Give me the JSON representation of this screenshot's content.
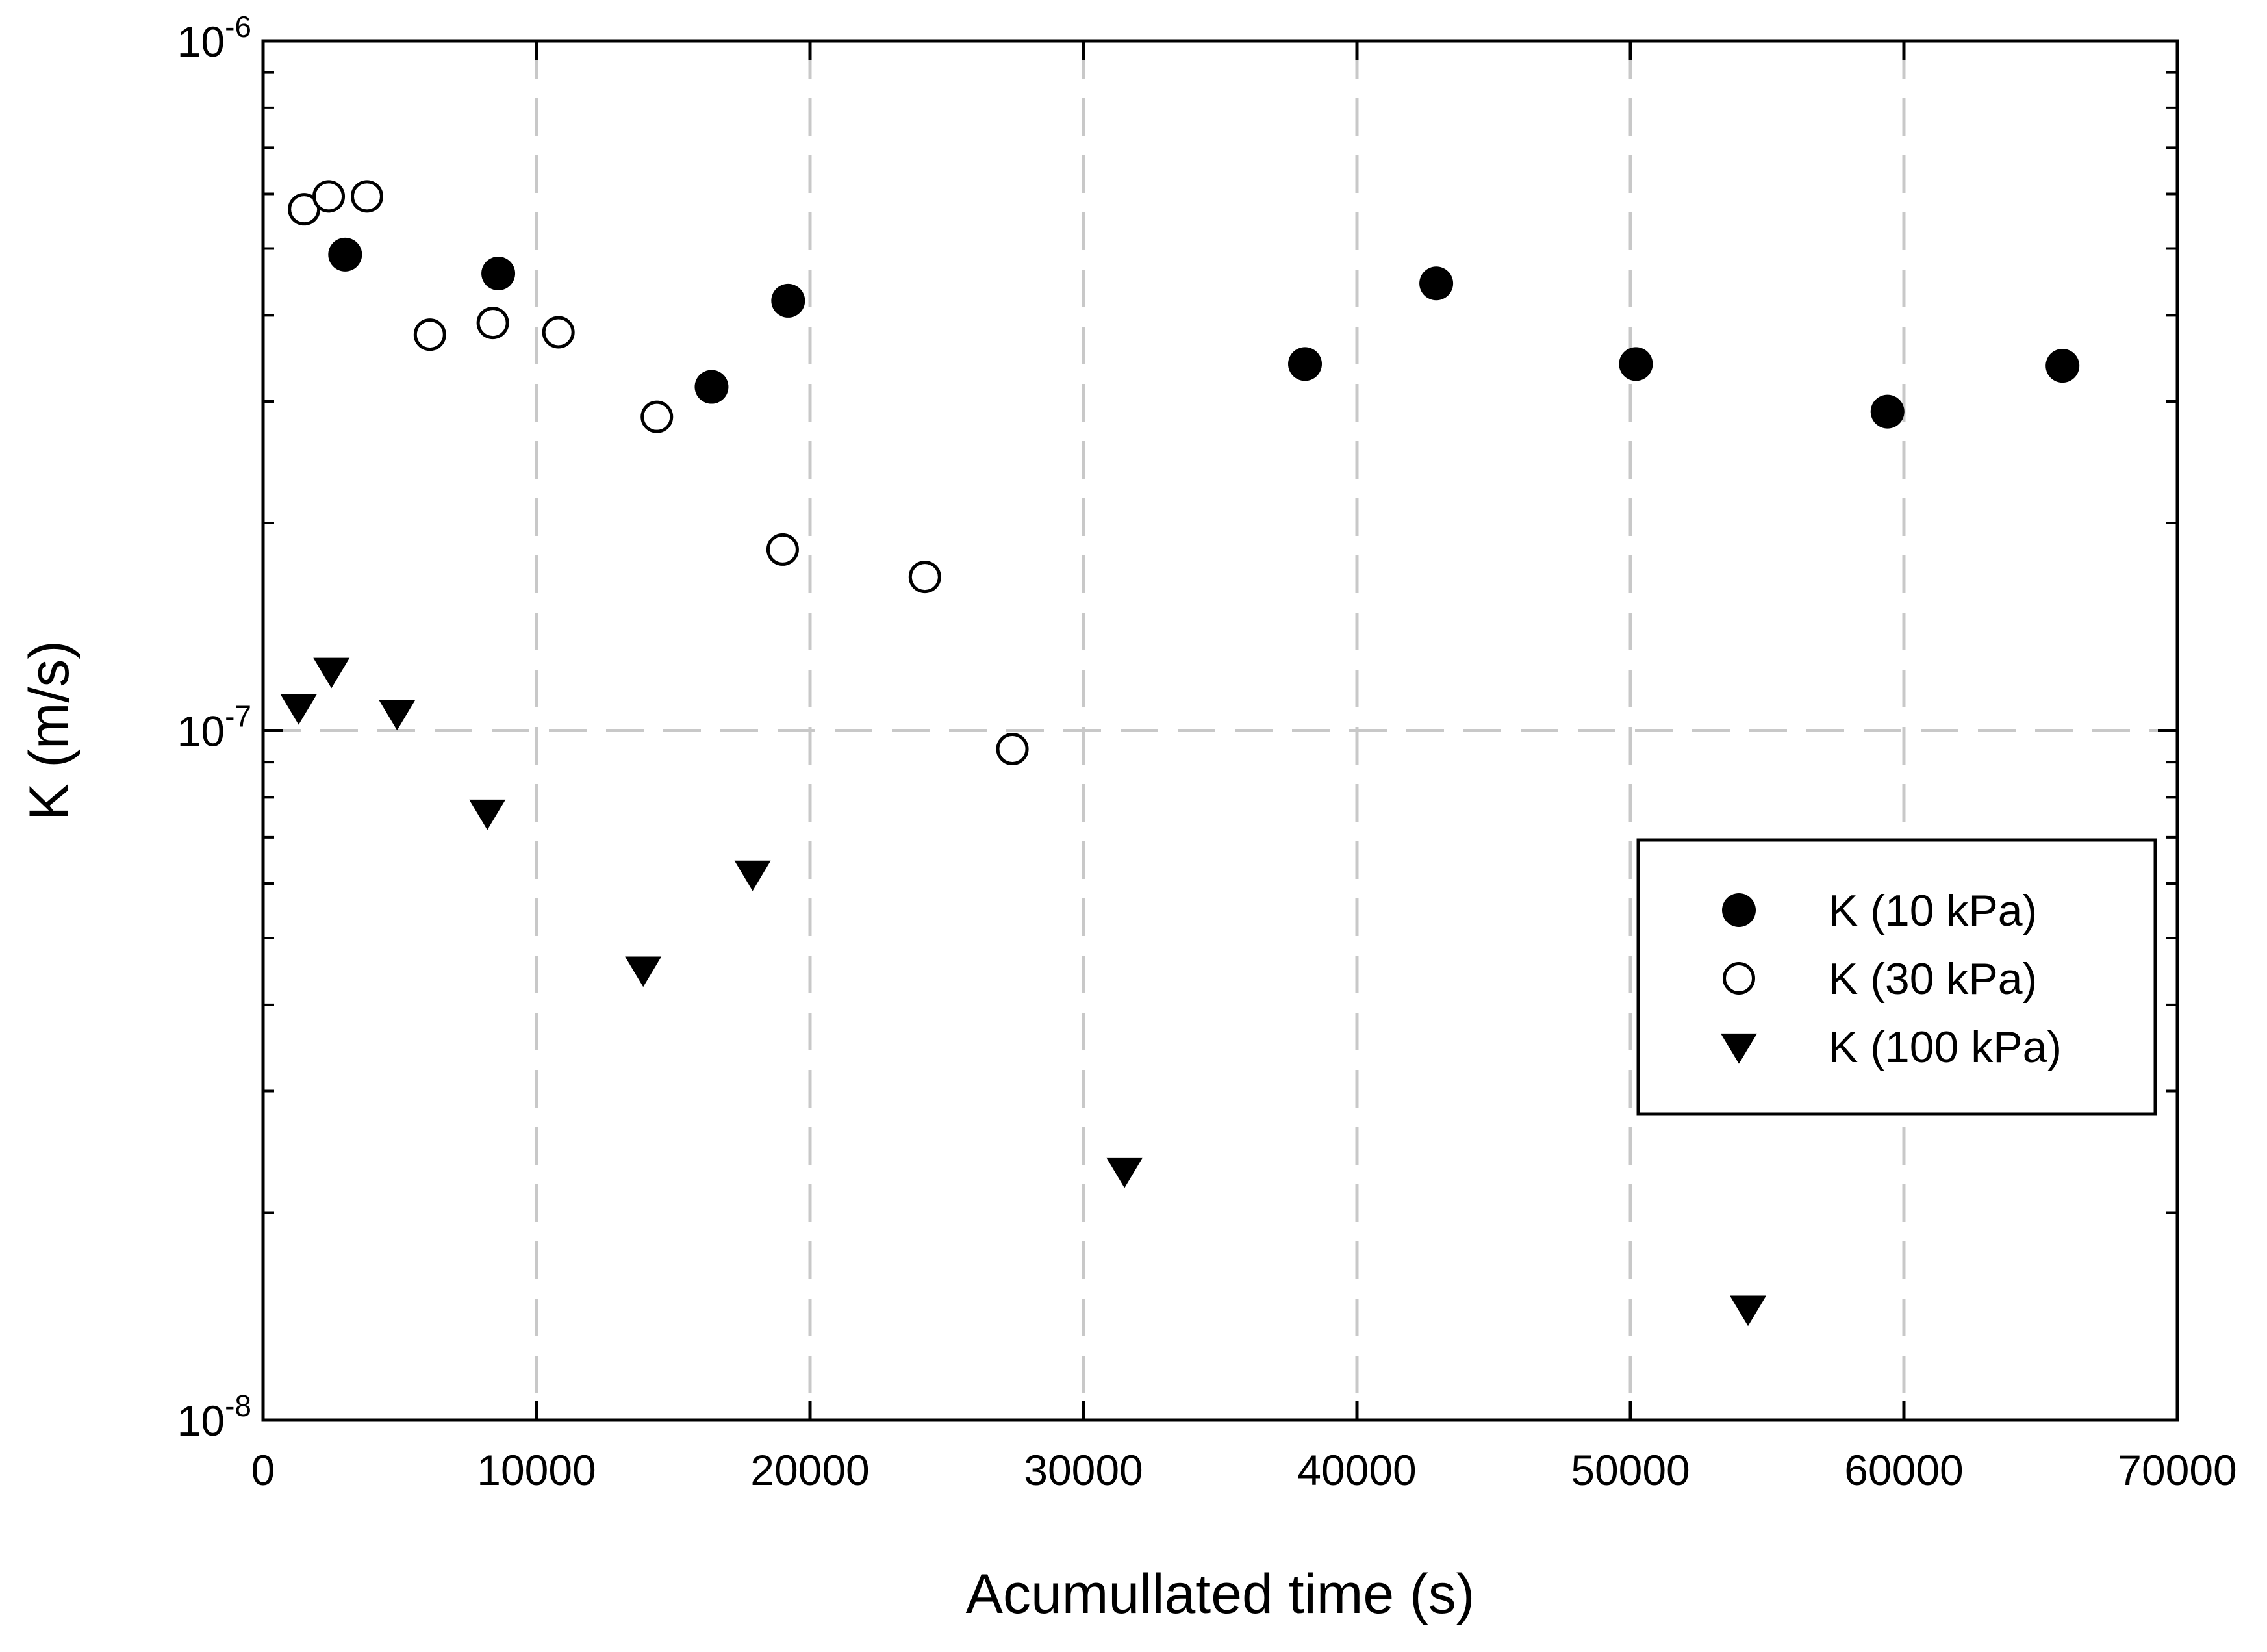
{
  "chart_data": {
    "type": "scatter",
    "xlabel": "Acumullated time (s)",
    "ylabel": "K (m/s)",
    "xlim": [
      0,
      70000
    ],
    "ylim": [
      1e-08,
      1e-06
    ],
    "yscale": "log",
    "x_ticks": [
      {
        "value": 0,
        "label": "0"
      },
      {
        "value": 10000,
        "label": "10000"
      },
      {
        "value": 20000,
        "label": "20000"
      },
      {
        "value": 30000,
        "label": "30000"
      },
      {
        "value": 40000,
        "label": "40000"
      },
      {
        "value": 50000,
        "label": "50000"
      },
      {
        "value": 60000,
        "label": "60000"
      },
      {
        "value": 70000,
        "label": "70000"
      }
    ],
    "y_ticks": [
      {
        "value": 1e-08,
        "base": "10",
        "exp": "-8"
      },
      {
        "value": 1e-07,
        "base": "10",
        "exp": "-7"
      },
      {
        "value": 1e-06,
        "base": "10",
        "exp": "-6"
      }
    ],
    "grid": "dashed",
    "legend_position": "right",
    "series": [
      {
        "name": "K (10 kPa)",
        "marker": "filled-circle",
        "color": "#000000",
        "points": [
          [
            3000,
            4.9e-07
          ],
          [
            8600,
            4.6e-07
          ],
          [
            16400,
            3.15e-07
          ],
          [
            19200,
            4.2e-07
          ],
          [
            38100,
            3.4e-07
          ],
          [
            42900,
            4.45e-07
          ],
          [
            50200,
            3.4e-07
          ],
          [
            59400,
            2.9e-07
          ],
          [
            65800,
            3.38e-07
          ]
        ]
      },
      {
        "name": "K (30 kPa)",
        "marker": "open-circle",
        "color": "#000000",
        "points": [
          [
            1500,
            5.7e-07
          ],
          [
            2400,
            5.95e-07
          ],
          [
            3800,
            5.95e-07
          ],
          [
            6100,
            3.75e-07
          ],
          [
            8400,
            3.9e-07
          ],
          [
            10800,
            3.78e-07
          ],
          [
            14400,
            2.85e-07
          ],
          [
            19000,
            1.83e-07
          ],
          [
            24200,
            1.67e-07
          ],
          [
            27400,
            9.4e-08
          ]
        ]
      },
      {
        "name": "K (100 kPa)",
        "marker": "filled-triangle-down",
        "color": "#000000",
        "points": [
          [
            1300,
            1.08e-07
          ],
          [
            2500,
            1.22e-07
          ],
          [
            4900,
            1.06e-07
          ],
          [
            8200,
            7.6e-08
          ],
          [
            13900,
            4.5e-08
          ],
          [
            17900,
            6.2e-08
          ],
          [
            31500,
            2.3e-08
          ],
          [
            54300,
            1.45e-08
          ]
        ]
      }
    ]
  }
}
